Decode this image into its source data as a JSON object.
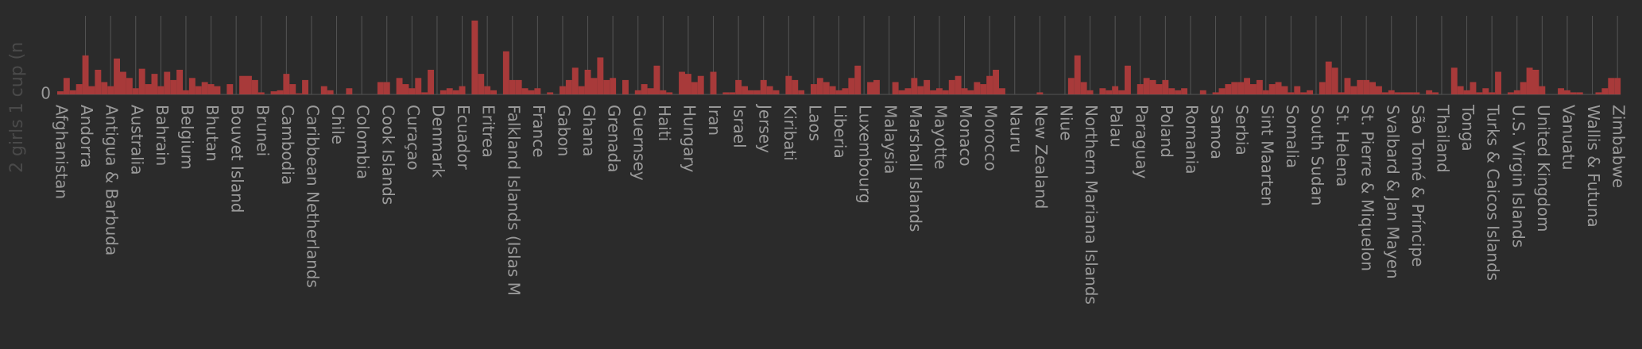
{
  "chart_data": {
    "type": "bar",
    "ylabel": "2 girls 1 cup (n",
    "color": "#a83a3a",
    "ylim": [
      0,
      75
    ],
    "yticks": [
      0
    ],
    "grid": true,
    "categories": [
      "Afghanistan",
      null,
      null,
      null,
      "Andorra",
      null,
      null,
      null,
      "Antigua & Barbuda",
      null,
      null,
      null,
      "Australia",
      null,
      null,
      null,
      "Bahrain",
      null,
      null,
      null,
      "Belgium",
      null,
      null,
      null,
      "Bhutan",
      null,
      null,
      null,
      "Bouvet Island",
      null,
      null,
      null,
      "Brunei",
      null,
      null,
      null,
      "Cambodia",
      null,
      null,
      null,
      "Caribbean Netherlands",
      null,
      null,
      null,
      "Chile",
      null,
      null,
      null,
      "Colombia",
      null,
      null,
      null,
      "Cook Islands",
      null,
      null,
      null,
      "Curaçao",
      null,
      null,
      null,
      "Denmark",
      null,
      null,
      null,
      "Ecuador",
      null,
      null,
      null,
      "Eritrea",
      null,
      null,
      null,
      "Falkland Islands (Islas M",
      null,
      null,
      null,
      "France",
      null,
      null,
      null,
      "Gabon",
      null,
      null,
      null,
      "Ghana",
      null,
      null,
      null,
      "Grenada",
      null,
      null,
      null,
      "Guernsey",
      null,
      null,
      null,
      "Haiti",
      null,
      null,
      null,
      "Hungary",
      null,
      null,
      null,
      "Iran",
      null,
      null,
      null,
      "Israel",
      null,
      null,
      null,
      "Jersey",
      null,
      null,
      null,
      "Kiribati",
      null,
      null,
      null,
      "Laos",
      null,
      null,
      null,
      "Liberia",
      null,
      null,
      null,
      "Luxembourg",
      null,
      null,
      null,
      "Malaysia",
      null,
      null,
      null,
      "Marshall Islands",
      null,
      null,
      null,
      "Mayotte",
      null,
      null,
      null,
      "Monaco",
      null,
      null,
      null,
      "Morocco",
      null,
      null,
      null,
      "Nauru",
      null,
      null,
      null,
      "New Zealand",
      null,
      null,
      null,
      "Niue",
      null,
      null,
      null,
      "Northern Mariana Islands",
      null,
      null,
      null,
      "Palau",
      null,
      null,
      null,
      "Paraguay",
      null,
      null,
      null,
      "Poland",
      null,
      null,
      null,
      "Romania",
      null,
      null,
      null,
      "Samoa",
      null,
      null,
      null,
      "Serbia",
      null,
      null,
      null,
      "Sint Maarten",
      null,
      null,
      null,
      "Somalia",
      null,
      null,
      null,
      "South Sudan",
      null,
      null,
      null,
      "St. Helena",
      null,
      null,
      null,
      "St. Pierre & Miquelon",
      null,
      null,
      null,
      "Svalbard & Jan Mayen",
      null,
      null,
      null,
      "São Tomé & Príncipe",
      null,
      null,
      null,
      "Thailand",
      null,
      null,
      null,
      "Tonga",
      null,
      null,
      null,
      "Turks & Caicos Islands",
      null,
      null,
      null,
      "U.S. Virgin Islands",
      null,
      null,
      null,
      "United Kingdom",
      null,
      null,
      null,
      "Vanuatu",
      null,
      null,
      null,
      "Wallis & Futuna",
      null,
      null,
      null,
      "Zimbabwe"
    ],
    "values": [
      3,
      16,
      4,
      10,
      38,
      8,
      24,
      12,
      8,
      35,
      22,
      16,
      6,
      25,
      10,
      20,
      8,
      22,
      14,
      24,
      4,
      16,
      8,
      12,
      10,
      8,
      0,
      10,
      0,
      18,
      18,
      14,
      2,
      0,
      3,
      4,
      20,
      10,
      1,
      14,
      0,
      0,
      8,
      4,
      0,
      0,
      6,
      0,
      0,
      0,
      0,
      12,
      12,
      0,
      16,
      10,
      6,
      16,
      2,
      24,
      0,
      4,
      6,
      4,
      8,
      0,
      72,
      20,
      8,
      4,
      0,
      42,
      14,
      14,
      6,
      4,
      6,
      0,
      2,
      0,
      8,
      14,
      26,
      8,
      24,
      16,
      36,
      14,
      16,
      0,
      14,
      0,
      4,
      10,
      6,
      28,
      4,
      2,
      0,
      22,
      20,
      12,
      18,
      0,
      22,
      0,
      2,
      2,
      14,
      8,
      4,
      4,
      14,
      8,
      4,
      0,
      18,
      14,
      4,
      0,
      10,
      16,
      12,
      8,
      4,
      6,
      16,
      28,
      0,
      12,
      14,
      0,
      0,
      12,
      4,
      6,
      16,
      8,
      14,
      4,
      6,
      4,
      14,
      18,
      6,
      4,
      12,
      10,
      18,
      24,
      6,
      0,
      0,
      0,
      0,
      0,
      2,
      0,
      0,
      0,
      0,
      16,
      38,
      12,
      4,
      0,
      6,
      4,
      8,
      4,
      28,
      0,
      10,
      16,
      14,
      10,
      14,
      6,
      4,
      6,
      0,
      0,
      4,
      0,
      2,
      6,
      10,
      12,
      12,
      16,
      10,
      14,
      4,
      10,
      12,
      8,
      2,
      8,
      2,
      4,
      0,
      12,
      32,
      26,
      2,
      16,
      8,
      14,
      14,
      12,
      8,
      2,
      4,
      2,
      2,
      2,
      2,
      0,
      4,
      2,
      0,
      0,
      26,
      8,
      4,
      12,
      2,
      6,
      2,
      22,
      0,
      2,
      4,
      12,
      26,
      24,
      8,
      0,
      0,
      6,
      4,
      2,
      2,
      0,
      0,
      2,
      6,
      16,
      16
    ]
  }
}
